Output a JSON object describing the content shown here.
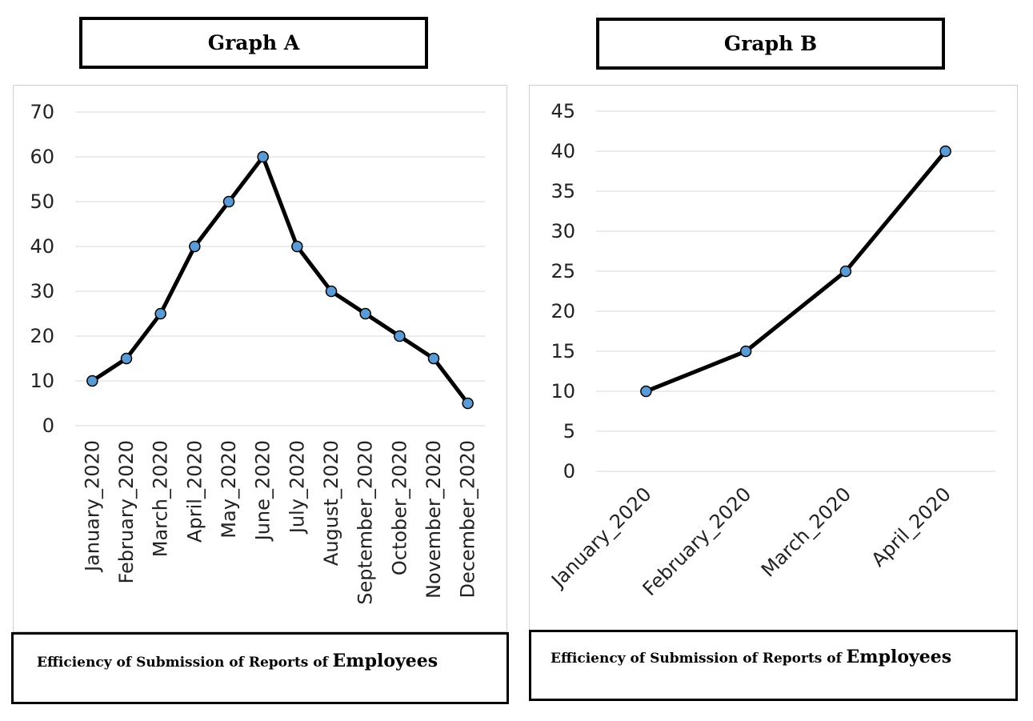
{
  "graphs": [
    {
      "title": "Graph A",
      "caption_main": "Efficiency of Submission of Reports of",
      "caption_emph": "Employees"
    },
    {
      "title": "Graph B",
      "caption_main": "Efficiency of Submission of Reports of",
      "caption_emph": "Employees"
    }
  ],
  "chart_data": [
    {
      "type": "line",
      "title": "Graph A",
      "categories": [
        "January_2020",
        "February_2020",
        "March_2020",
        "April_2020",
        "May_2020",
        "June_2020",
        "July_2020",
        "August_2020",
        "September_2020",
        "October_2020",
        "November_2020",
        "December_2020"
      ],
      "series": [
        {
          "values": [
            10,
            15,
            25,
            40,
            50,
            60,
            40,
            30,
            25,
            20,
            15,
            5
          ]
        }
      ],
      "ylim": [
        0,
        70
      ],
      "ystep": 10,
      "yticks": [
        "0",
        "10",
        "20",
        "30",
        "40",
        "50",
        "60",
        "70"
      ],
      "grid": true,
      "line_color": "#000000",
      "marker_color": "#5b9bd5",
      "xlabel_rotation": "vertical"
    },
    {
      "type": "line",
      "title": "Graph B",
      "categories": [
        "January_2020",
        "February_2020",
        "March_2020",
        "April_2020"
      ],
      "series": [
        {
          "values": [
            10,
            15,
            25,
            40
          ]
        }
      ],
      "ylim": [
        0,
        45
      ],
      "ystep": 5,
      "yticks": [
        "0",
        "5",
        "10",
        "15",
        "20",
        "25",
        "30",
        "35",
        "40",
        "45"
      ],
      "grid": true,
      "line_color": "#000000",
      "marker_color": "#5b9bd5",
      "xlabel_rotation": "diagonal"
    }
  ]
}
